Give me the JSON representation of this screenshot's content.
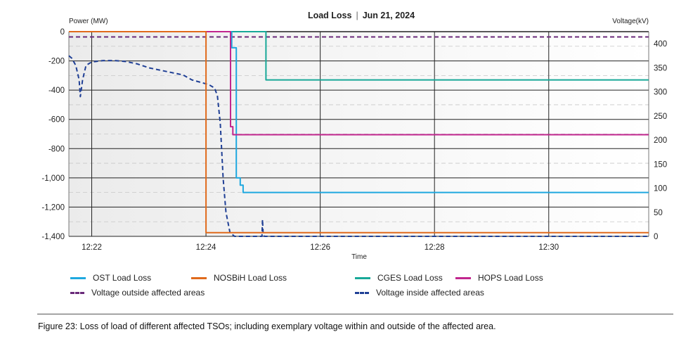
{
  "chart_data": {
    "type": "line",
    "title": "Load Loss",
    "subtitle": "Jun 21, 2024",
    "xlabel": "Time",
    "ylabel_left": "Power (MW)",
    "ylabel_right": "Voltage(kV)",
    "x_ticks": [
      "12:22",
      "12:24",
      "12:26",
      "12:28",
      "12:30"
    ],
    "y_left_ticks": [
      "0",
      "-200",
      "-400",
      "-600",
      "-800",
      "-1,000",
      "-1,200",
      "-1,400"
    ],
    "y_right_ticks": [
      "400",
      "350",
      "300",
      "250",
      "200",
      "150",
      "100",
      "50",
      "0"
    ],
    "y_left_range": [
      -1400,
      0
    ],
    "y_right_range": [
      0,
      425
    ],
    "x_range_minutes": [
      21.6,
      31.75
    ],
    "grid": true,
    "legend_placement": "bottom",
    "series": [
      {
        "name": "OST Load Loss",
        "axis": "left",
        "color": "#1fa8df",
        "style": "solid",
        "points": [
          [
            21.6,
            0
          ],
          [
            24.45,
            0
          ],
          [
            24.45,
            -110
          ],
          [
            24.53,
            -110
          ],
          [
            24.53,
            -1000
          ],
          [
            24.6,
            -1000
          ],
          [
            24.6,
            -1050
          ],
          [
            24.65,
            -1050
          ],
          [
            24.65,
            -1100
          ],
          [
            31.75,
            -1100
          ]
        ]
      },
      {
        "name": "NOSBiH Load Loss",
        "axis": "left",
        "color": "#e06a1c",
        "style": "solid",
        "points": [
          [
            21.6,
            0
          ],
          [
            24.0,
            0
          ],
          [
            24.0,
            -1375
          ],
          [
            31.75,
            -1375
          ]
        ]
      },
      {
        "name": "CGES Load Loss",
        "axis": "left",
        "color": "#18a898",
        "style": "solid",
        "points": [
          [
            21.6,
            0
          ],
          [
            25.05,
            0
          ],
          [
            25.05,
            -330
          ],
          [
            31.75,
            -330
          ]
        ]
      },
      {
        "name": "HOPS Load Loss",
        "axis": "left",
        "color": "#c1268e",
        "style": "solid",
        "points": [
          [
            21.6,
            0
          ],
          [
            24.43,
            0
          ],
          [
            24.43,
            -650
          ],
          [
            24.47,
            -650
          ],
          [
            24.47,
            -705
          ],
          [
            31.75,
            -705
          ]
        ]
      },
      {
        "name": "Voltage outside affected areas",
        "axis": "right",
        "color": "#6a2a7a",
        "style": "dashed",
        "points": [
          [
            21.6,
            414
          ],
          [
            31.75,
            414
          ]
        ]
      },
      {
        "name": "Voltage inside affected areas",
        "axis": "right",
        "color": "#1f3f95",
        "style": "dashed",
        "points": [
          [
            21.6,
            375
          ],
          [
            21.65,
            370
          ],
          [
            21.72,
            355
          ],
          [
            21.78,
            325
          ],
          [
            21.8,
            290
          ],
          [
            21.84,
            325
          ],
          [
            21.9,
            355
          ],
          [
            22.0,
            362
          ],
          [
            22.2,
            365
          ],
          [
            22.4,
            365
          ],
          [
            22.6,
            363
          ],
          [
            22.8,
            358
          ],
          [
            23.0,
            350
          ],
          [
            23.2,
            345
          ],
          [
            23.4,
            340
          ],
          [
            23.6,
            335
          ],
          [
            23.75,
            325
          ],
          [
            23.9,
            320
          ],
          [
            24.05,
            315
          ],
          [
            24.15,
            308
          ],
          [
            24.2,
            292
          ],
          [
            24.25,
            235
          ],
          [
            24.3,
            120
          ],
          [
            24.35,
            50
          ],
          [
            24.42,
            8
          ],
          [
            24.5,
            0
          ],
          [
            24.98,
            0
          ],
          [
            24.99,
            35
          ],
          [
            25.0,
            5
          ],
          [
            25.02,
            0
          ],
          [
            31.75,
            0
          ]
        ]
      }
    ]
  },
  "caption": "Figure 23:  Loss of load of different affected TSOs; including exemplary voltage within and outside of the affected area."
}
